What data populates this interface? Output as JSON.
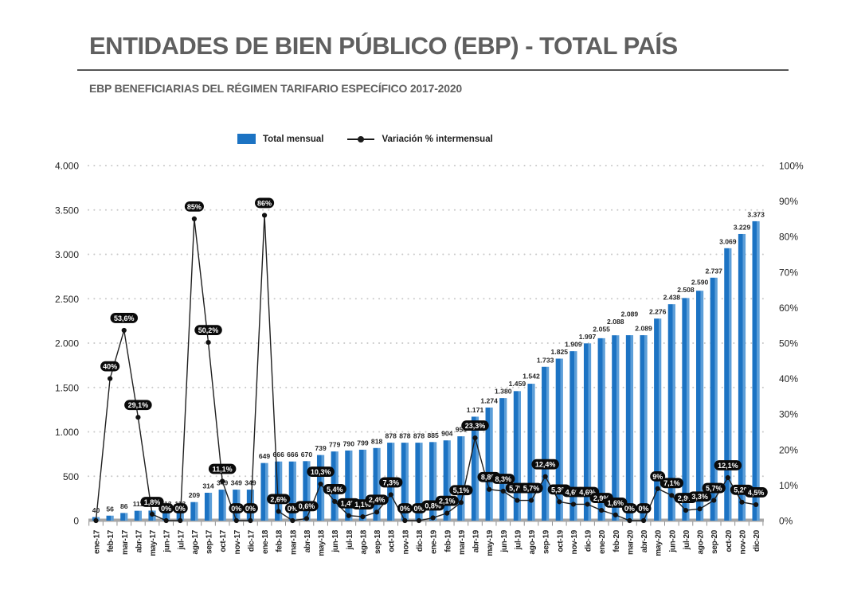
{
  "header": {
    "title": "ENTIDADES DE BIEN PÚBLICO (EBP) - TOTAL PAÍS",
    "subtitle": "EBP BENEFICIARIAS DEL RÉGIMEN TARIFARIO ESPECÍFICO 2017-2020"
  },
  "legend": {
    "bar_label": "Total mensual",
    "line_label": "Variación % intermensual"
  },
  "colors": {
    "bar": "#1C73C3",
    "bar_highlight": "#5C9ED8",
    "line": "#1f1f1f",
    "pill_bg": "#0a0a0a",
    "pill_text": "#ffffff",
    "grid": "#c9c9c9",
    "axis_text": "#262626",
    "baseline": "#a6a6a6",
    "title_gray": "#5f5f5f"
  },
  "chart_data": {
    "type": "bar+line combo",
    "title": "EBP BENEFICIARIAS DEL RÉGIMEN TARIFARIO ESPECÍFICO 2017-2020",
    "grid": "dotted horizontal gridlines every 500 (left axis)",
    "legend_position": "top",
    "categories": [
      "ene-17",
      "feb-17",
      "mar-17",
      "abr-17",
      "may-17",
      "jun-17",
      "jul-17",
      "ago-17",
      "sep-17",
      "oct-17",
      "nov-17",
      "dic-17",
      "ene-18",
      "feb-18",
      "mar-18",
      "abr-18",
      "may-18",
      "jun-18",
      "jul-18",
      "ago-18",
      "sep-18",
      "oct-18",
      "nov-18",
      "dic-18",
      "ene-19",
      "feb-19",
      "mar-19",
      "abr-19",
      "may-19",
      "jun-19",
      "jul-19",
      "ago-19",
      "sep-19",
      "oct-19",
      "nov-19",
      "dic-19",
      "ene-20",
      "feb-20",
      "mar-20",
      "abr-20",
      "may-20",
      "jun-20",
      "jul-20",
      "ago-20",
      "sep-20",
      "oct-20",
      "nov-20",
      "dic-20"
    ],
    "series": [
      {
        "name": "Total mensual",
        "type": "bar",
        "axis": "left",
        "values": [
          40,
          56,
          86,
          111,
          113,
          113,
          113,
          209,
          314,
          349,
          349,
          349,
          649,
          666,
          666,
          670,
          739,
          779,
          790,
          799,
          818,
          878,
          878,
          878,
          885,
          904,
          950,
          1171,
          1274,
          1380,
          1459,
          1542,
          1733,
          1825,
          1909,
          1997,
          2055,
          2088,
          2089,
          2089,
          2276,
          2438,
          2508,
          2590,
          2737,
          3069,
          3229,
          3373
        ],
        "value_labels": [
          "40",
          "56",
          "86",
          "111",
          "113",
          "113",
          "113",
          "209",
          "314",
          "349",
          "349",
          "349",
          "649",
          "666",
          "666",
          "670",
          "739",
          "779",
          "790",
          "799",
          "818",
          "878",
          "878",
          "878",
          "885",
          "904",
          "950",
          "1.171",
          "1.274",
          "1.380",
          "1.459",
          "1.542",
          "1.733",
          "1.825",
          "1.909",
          "1.997",
          "2.055",
          "2.088",
          "2.089",
          "2.089",
          "2.276",
          "2.438",
          "2.508",
          "2.590",
          "2.737",
          "3.069",
          "3.229",
          "3.373"
        ]
      },
      {
        "name": "Variación % intermensual",
        "type": "line",
        "axis": "right",
        "values": [
          0,
          40,
          53.6,
          29.1,
          1.8,
          0,
          0,
          85,
          50.2,
          11.1,
          0,
          0,
          86,
          2.6,
          0,
          0.6,
          10.3,
          5.4,
          1.4,
          1.1,
          2.4,
          7.3,
          0,
          0,
          0.8,
          2.1,
          5.1,
          23.3,
          8.8,
          8.3,
          5.7,
          5.7,
          12.4,
          5.3,
          4.6,
          4.6,
          2.9,
          1.6,
          0,
          0,
          9,
          7.1,
          2.9,
          3.3,
          5.7,
          12.1,
          5.2,
          4.5
        ],
        "value_labels": [
          null,
          "40%",
          "53,6%",
          "29,1%",
          "1,8%",
          "0%",
          "0%",
          "85%",
          "50,2%",
          "11,1%",
          "0%",
          "0%",
          "86%",
          "2,6%",
          "0%",
          "0,6%",
          "10,3%",
          "5,4%",
          "1,4%",
          "1,1%",
          "2,4%",
          "7,3%",
          "0%",
          "0%",
          "0,8%",
          "2,1%",
          "5,1%",
          "23,3%",
          "8,8%",
          "8,3%",
          "5,7%",
          "5,7%",
          "12,4%",
          "5,3%",
          "4,6%",
          "4,6%",
          "2,9%",
          "1,6%",
          "0%",
          "0%",
          "9%",
          "7,1%",
          "2,9%",
          "3,3%",
          "5,7%",
          "12,1%",
          "5,2%",
          "4,5%"
        ]
      }
    ],
    "left_axis": {
      "min": 0,
      "max": 4000,
      "tick_values": [
        0,
        500,
        1000,
        1500,
        2000,
        2500,
        3000,
        3500,
        4000
      ],
      "tick_labels": [
        "0",
        "500",
        "1.000",
        "1.500",
        "2.000",
        "2.500",
        "3.000",
        "3.500",
        "4.000"
      ]
    },
    "right_axis": {
      "min": 0,
      "max": 100,
      "tick_values": [
        0,
        10,
        20,
        30,
        40,
        50,
        60,
        70,
        80,
        90,
        100
      ],
      "tick_labels": [
        "0%",
        "10%",
        "20%",
        "30%",
        "40%",
        "50%",
        "60%",
        "70%",
        "80%",
        "90%",
        "100%"
      ]
    }
  }
}
